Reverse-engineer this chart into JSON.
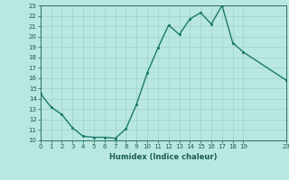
{
  "x": [
    0,
    1,
    2,
    3,
    4,
    5,
    6,
    7,
    8,
    9,
    10,
    11,
    12,
    13,
    14,
    15,
    16,
    17,
    18,
    19,
    23
  ],
  "y": [
    14.5,
    13.2,
    12.5,
    11.2,
    10.4,
    10.3,
    10.3,
    10.2,
    11.1,
    13.5,
    16.5,
    18.9,
    21.1,
    20.2,
    21.7,
    22.3,
    21.2,
    23.0,
    19.4,
    18.5,
    15.8
  ],
  "line_color": "#1a7a6e",
  "marker_color": "#1a7a6e",
  "bg_color": "#b8e8e0",
  "grid_color": "#a0d0c8",
  "text_color": "#1a5c54",
  "xlabel": "Humidex (Indice chaleur)",
  "ylim": [
    10,
    23
  ],
  "xlim": [
    0,
    23
  ],
  "yticks": [
    10,
    11,
    12,
    13,
    14,
    15,
    16,
    17,
    18,
    19,
    20,
    21,
    22,
    23
  ],
  "xticks": [
    0,
    1,
    2,
    3,
    4,
    5,
    6,
    7,
    8,
    9,
    10,
    11,
    12,
    13,
    14,
    15,
    16,
    17,
    18,
    19,
    23
  ],
  "xtick_labels": [
    "0",
    "1",
    "2",
    "3",
    "4",
    "5",
    "6",
    "7",
    "8",
    "9",
    "10",
    "11",
    "12",
    "13",
    "14",
    "15",
    "16",
    "17",
    "18",
    "19",
    "23"
  ]
}
